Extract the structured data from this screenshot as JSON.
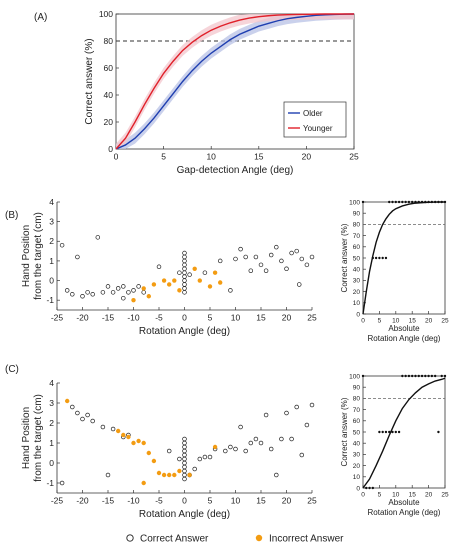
{
  "panels": {
    "a": {
      "label": "(A)"
    },
    "b": {
      "label": "(B)"
    },
    "c": {
      "label": "(C)"
    }
  },
  "colors": {
    "older": "#1f3fb0",
    "younger": "#e0202a",
    "older_band": "#b8c2e6",
    "younger_band": "#f3c6cc",
    "incorrect": "#f39c12",
    "correct_stroke": "#222222"
  },
  "legend_bottom": {
    "correct": "Correct Answer",
    "incorrect": "Incorrect Answer"
  },
  "chart_data": [
    {
      "id": "A",
      "type": "line",
      "xlabel": "Gap-detection Angle (deg)",
      "ylabel": "Correct answer (%)",
      "xlim": [
        0,
        25
      ],
      "ylim": [
        0,
        100
      ],
      "xticks": [
        0,
        5,
        10,
        15,
        20,
        25
      ],
      "yticks": [
        0,
        20,
        40,
        60,
        80,
        100
      ],
      "reference_line": 80,
      "legend_position": "lower-right",
      "series": [
        {
          "name": "Older",
          "x": [
            0,
            1,
            2,
            3,
            4,
            5,
            6,
            7,
            8,
            9,
            10,
            11,
            12,
            13,
            14,
            15,
            16,
            17,
            18,
            19,
            20,
            21,
            22,
            23,
            24,
            25
          ],
          "values": [
            0,
            3,
            8,
            15,
            23,
            32,
            41,
            50,
            58,
            65,
            71,
            76,
            81,
            85,
            88,
            91,
            93,
            95,
            96.5,
            97.5,
            98.3,
            99,
            99.4,
            99.7,
            99.9,
            100
          ],
          "band": 4
        },
        {
          "name": "Younger",
          "x": [
            0,
            1,
            2,
            3,
            4,
            5,
            6,
            7,
            8,
            9,
            10,
            11,
            12,
            13,
            14,
            15,
            16,
            17,
            18,
            19,
            20,
            21,
            22,
            23,
            24,
            25
          ],
          "values": [
            0,
            8,
            20,
            33,
            45,
            56,
            65,
            73,
            79,
            84,
            88,
            91,
            93.5,
            95.5,
            97,
            98,
            98.7,
            99.2,
            99.5,
            99.7,
            99.8,
            99.9,
            100,
            100,
            100,
            100
          ],
          "band": 4
        }
      ]
    },
    {
      "id": "B-scatter",
      "type": "scatter",
      "xlabel": "Rotation Angle (deg)",
      "ylabel": "Hand Position\nfrom the target (cm)",
      "ylabel_lines": [
        "Hand Position",
        "from the target (cm)"
      ],
      "xlim": [
        -25,
        25
      ],
      "ylim": [
        -1.5,
        4
      ],
      "xticks": [
        -25,
        -20,
        -15,
        -10,
        -5,
        0,
        5,
        10,
        15,
        20,
        25
      ],
      "yticks": [
        -1,
        0,
        1,
        2,
        3,
        4
      ],
      "series": [
        {
          "name": "Correct Answer",
          "marker": "open-circle",
          "points": [
            [
              -24,
              1.8
            ],
            [
              -23,
              -0.5
            ],
            [
              -22,
              -0.7
            ],
            [
              -21,
              1.2
            ],
            [
              -20,
              -0.8
            ],
            [
              -19,
              -0.6
            ],
            [
              -18,
              -0.7
            ],
            [
              -17,
              2.2
            ],
            [
              -16,
              -0.6
            ],
            [
              -15,
              -0.3
            ],
            [
              -14,
              -0.6
            ],
            [
              -13,
              -0.4
            ],
            [
              -12,
              -0.9
            ],
            [
              -12,
              -0.3
            ],
            [
              -11,
              -0.6
            ],
            [
              -10,
              -0.5
            ],
            [
              -9,
              -0.3
            ],
            [
              -8,
              -0.6
            ],
            [
              -5,
              0.7
            ],
            [
              -1,
              0.4
            ],
            [
              0,
              -0.6
            ],
            [
              0,
              -0.4
            ],
            [
              0,
              -0.2
            ],
            [
              0,
              0.0
            ],
            [
              0,
              0.2
            ],
            [
              0,
              0.4
            ],
            [
              0,
              0.6
            ],
            [
              0,
              0.8
            ],
            [
              0,
              1.0
            ],
            [
              0,
              1.2
            ],
            [
              0,
              1.4
            ],
            [
              1,
              0.3
            ],
            [
              4,
              0.4
            ],
            [
              7,
              1.0
            ],
            [
              9,
              -0.5
            ],
            [
              10,
              1.1
            ],
            [
              11,
              1.6
            ],
            [
              12,
              1.2
            ],
            [
              13,
              0.5
            ],
            [
              14,
              1.2
            ],
            [
              15,
              0.8
            ],
            [
              16,
              0.5
            ],
            [
              17,
              1.3
            ],
            [
              18,
              1.7
            ],
            [
              19,
              1.0
            ],
            [
              20,
              0.6
            ],
            [
              21,
              1.4
            ],
            [
              22,
              1.5
            ],
            [
              22.5,
              -0.2
            ],
            [
              23,
              1.1
            ],
            [
              24,
              0.8
            ],
            [
              25,
              1.2
            ]
          ]
        },
        {
          "name": "Incorrect Answer",
          "marker": "filled-circle",
          "points": [
            [
              -10,
              -1.0
            ],
            [
              -8,
              -0.4
            ],
            [
              -7,
              -0.8
            ],
            [
              -6,
              -0.2
            ],
            [
              -4,
              0.0
            ],
            [
              -3,
              -0.2
            ],
            [
              -2,
              0.0
            ],
            [
              -1,
              -0.5
            ],
            [
              2,
              0.6
            ],
            [
              3,
              0.0
            ],
            [
              5,
              -0.3
            ],
            [
              6,
              0.4
            ],
            [
              7,
              -0.1
            ]
          ]
        }
      ]
    },
    {
      "id": "B-curve",
      "type": "line",
      "xlabel": "Absolute\nRotation Angle (deg)",
      "xlabel_lines": [
        "Absolute",
        "Rotation Angle (deg)"
      ],
      "ylabel": "Correct answer (%)",
      "xlim": [
        0,
        25
      ],
      "ylim": [
        0,
        100
      ],
      "xticks": [
        0,
        5,
        10,
        15,
        20,
        25
      ],
      "yticks": [
        0,
        10,
        20,
        30,
        40,
        50,
        60,
        70,
        80,
        90,
        100
      ],
      "reference_line": 80,
      "series": [
        {
          "name": "fit",
          "x": [
            0,
            1,
            2,
            3,
            4,
            5,
            6,
            7,
            8,
            9,
            10,
            12,
            14,
            16,
            18,
            20,
            22,
            25
          ],
          "values": [
            0,
            20,
            38,
            52,
            64,
            73,
            80,
            85,
            89,
            92,
            94,
            96.5,
            98,
            99,
            99.4,
            99.7,
            99.9,
            100
          ]
        },
        {
          "name": "data",
          "marker": "dot",
          "points": [
            [
              0,
              100
            ],
            [
              3,
              50
            ],
            [
              4,
              50
            ],
            [
              5,
              50
            ],
            [
              6,
              50
            ],
            [
              7,
              50
            ],
            [
              8,
              100
            ],
            [
              9,
              100
            ],
            [
              10,
              100
            ],
            [
              11,
              100
            ],
            [
              12,
              100
            ],
            [
              13,
              100
            ],
            [
              14,
              100
            ],
            [
              15,
              100
            ],
            [
              16,
              100
            ],
            [
              17,
              100
            ],
            [
              18,
              100
            ],
            [
              19,
              100
            ],
            [
              20,
              100
            ],
            [
              21,
              100
            ],
            [
              22,
              100
            ],
            [
              23,
              100
            ],
            [
              24,
              100
            ],
            [
              25,
              100
            ]
          ]
        }
      ]
    },
    {
      "id": "C-scatter",
      "type": "scatter",
      "xlabel": "Rotation Angle (deg)",
      "ylabel": "Hand Position\nfrom the target (cm)",
      "ylabel_lines": [
        "Hand Position",
        "from the target (cm)"
      ],
      "xlim": [
        -25,
        25
      ],
      "ylim": [
        -1.5,
        4
      ],
      "xticks": [
        -25,
        -20,
        -15,
        -10,
        -5,
        0,
        5,
        10,
        15,
        20,
        25
      ],
      "yticks": [
        -1,
        0,
        1,
        2,
        3,
        4
      ],
      "series": [
        {
          "name": "Correct Answer",
          "marker": "open-circle",
          "points": [
            [
              -24,
              -1.0
            ],
            [
              -22,
              2.8
            ],
            [
              -21,
              2.5
            ],
            [
              -20,
              2.2
            ],
            [
              -19,
              2.4
            ],
            [
              -18,
              2.1
            ],
            [
              -16,
              1.8
            ],
            [
              -15,
              -0.6
            ],
            [
              -14,
              1.7
            ],
            [
              -12,
              1.3
            ],
            [
              -11,
              1.4
            ],
            [
              -3,
              0.6
            ],
            [
              -1,
              0.2
            ],
            [
              0,
              -0.8
            ],
            [
              0,
              -0.6
            ],
            [
              0,
              -0.4
            ],
            [
              0,
              -0.2
            ],
            [
              0,
              0.0
            ],
            [
              0,
              0.2
            ],
            [
              0,
              0.4
            ],
            [
              0,
              0.6
            ],
            [
              0,
              0.8
            ],
            [
              0,
              1.0
            ],
            [
              0,
              1.2
            ],
            [
              1,
              -0.6
            ],
            [
              2,
              -0.3
            ],
            [
              3,
              0.2
            ],
            [
              4,
              0.3
            ],
            [
              5,
              0.3
            ],
            [
              6,
              0.7
            ],
            [
              8,
              0.6
            ],
            [
              9,
              0.8
            ],
            [
              10,
              0.7
            ],
            [
              11,
              1.8
            ],
            [
              12,
              0.6
            ],
            [
              13,
              1.0
            ],
            [
              14,
              1.2
            ],
            [
              15,
              1.0
            ],
            [
              16,
              2.4
            ],
            [
              17,
              0.7
            ],
            [
              18,
              -0.6
            ],
            [
              19,
              1.2
            ],
            [
              20,
              2.5
            ],
            [
              21,
              1.2
            ],
            [
              22,
              2.8
            ],
            [
              23,
              0.4
            ],
            [
              24,
              1.9
            ],
            [
              25,
              2.9
            ]
          ]
        },
        {
          "name": "Incorrect Answer",
          "marker": "filled-circle",
          "points": [
            [
              -23,
              3.1
            ],
            [
              -13,
              1.6
            ],
            [
              -12,
              1.4
            ],
            [
              -11,
              1.3
            ],
            [
              -10,
              1.0
            ],
            [
              -9,
              1.1
            ],
            [
              -8,
              1.0
            ],
            [
              -7,
              0.5
            ],
            [
              -6,
              0.1
            ],
            [
              -5,
              -0.5
            ],
            [
              -4,
              -0.6
            ],
            [
              -3,
              -0.6
            ],
            [
              -2,
              -0.6
            ],
            [
              -1,
              -0.4
            ],
            [
              1,
              -0.6
            ],
            [
              -8,
              -1.0
            ],
            [
              6,
              0.8
            ]
          ]
        }
      ]
    },
    {
      "id": "C-curve",
      "type": "line",
      "xlabel": "Absolute\nRotation Angle (deg)",
      "xlabel_lines": [
        "Absolute",
        "Rotation Angle (deg)"
      ],
      "ylabel": "Correct answer (%)",
      "xlim": [
        0,
        25
      ],
      "ylim": [
        0,
        100
      ],
      "xticks": [
        0,
        5,
        10,
        15,
        20,
        25
      ],
      "yticks": [
        0,
        10,
        20,
        30,
        40,
        50,
        60,
        70,
        80,
        90,
        100
      ],
      "reference_line": 80,
      "series": [
        {
          "name": "fit",
          "x": [
            0,
            2,
            4,
            6,
            8,
            10,
            12,
            14,
            16,
            18,
            20,
            22,
            24,
            25
          ],
          "values": [
            0,
            8,
            20,
            33,
            47,
            60,
            71,
            79,
            85,
            90,
            93,
            95.5,
            97,
            98
          ]
        },
        {
          "name": "data",
          "marker": "dot",
          "points": [
            [
              0,
              100
            ],
            [
              1,
              0
            ],
            [
              2,
              0
            ],
            [
              3,
              0
            ],
            [
              5,
              50
            ],
            [
              6,
              50
            ],
            [
              7,
              50
            ],
            [
              8,
              50
            ],
            [
              9,
              50
            ],
            [
              10,
              50
            ],
            [
              11,
              50
            ],
            [
              12,
              100
            ],
            [
              13,
              100
            ],
            [
              14,
              100
            ],
            [
              15,
              100
            ],
            [
              16,
              100
            ],
            [
              17,
              100
            ],
            [
              18,
              100
            ],
            [
              19,
              100
            ],
            [
              20,
              100
            ],
            [
              21,
              100
            ],
            [
              22,
              100
            ],
            [
              23,
              50
            ],
            [
              24,
              100
            ],
            [
              25,
              100
            ]
          ]
        }
      ]
    }
  ]
}
